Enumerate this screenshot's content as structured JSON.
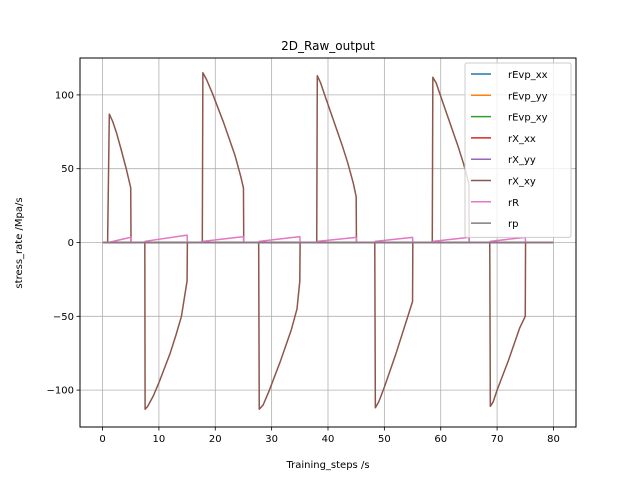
{
  "chart_data": {
    "type": "line",
    "title": "2D_Raw_output",
    "xlabel": "Training_steps /s",
    "ylabel": "stress_rate /Mpa/s",
    "xlim": [
      -4,
      84
    ],
    "ylim": [
      -125,
      125
    ],
    "xticks": [
      0,
      10,
      20,
      30,
      40,
      50,
      60,
      70,
      80
    ],
    "yticks": [
      -100,
      -50,
      0,
      50,
      100
    ],
    "xtick_labels": [
      "0",
      "10",
      "20",
      "30",
      "40",
      "50",
      "60",
      "70",
      "80"
    ],
    "ytick_labels": [
      "−100",
      "−50",
      "0",
      "50",
      "100"
    ],
    "grid": true,
    "legend_position": "top-right",
    "series": [
      {
        "name": "rEvp_xx",
        "color": "#1f77b4",
        "x": [
          0,
          80
        ],
        "y": [
          0,
          0
        ]
      },
      {
        "name": "rEvp_yy",
        "color": "#ff7f0e",
        "x": [
          0,
          80
        ],
        "y": [
          0,
          0
        ]
      },
      {
        "name": "rEvp_xy",
        "color": "#2ca02c",
        "x": [
          0,
          80
        ],
        "y": [
          0,
          0
        ]
      },
      {
        "name": "rX_xx",
        "color": "#d62728",
        "x": [
          0,
          80
        ],
        "y": [
          0,
          0
        ]
      },
      {
        "name": "rX_yy",
        "color": "#9467bd",
        "x": [
          0,
          80
        ],
        "y": [
          0,
          0
        ]
      },
      {
        "name": "rX_xy",
        "color": "#8c564b",
        "x": [
          0,
          0.9,
          1.2,
          1.8,
          2.5,
          3.3,
          4.2,
          5.0,
          5.05,
          7.5,
          7.55,
          8.0,
          9.0,
          10.0,
          11.0,
          12.0,
          13.0,
          14.0,
          15.0,
          15.05,
          17.7,
          17.8,
          18.5,
          19.5,
          20.5,
          21.5,
          22.5,
          23.5,
          24.5,
          25.0,
          25.05,
          27.7,
          27.8,
          28.5,
          29.5,
          30.5,
          31.5,
          32.5,
          33.5,
          34.5,
          35.0,
          35.05,
          38.0,
          38.1,
          38.7,
          39.5,
          40.5,
          41.5,
          42.5,
          43.5,
          44.5,
          45.0,
          45.05,
          48.3,
          48.4,
          49.0,
          50.0,
          51.0,
          52.0,
          53.0,
          54.0,
          55.0,
          55.05,
          58.5,
          58.6,
          59.2,
          60.0,
          61.0,
          62.0,
          63.0,
          64.0,
          65.0,
          65.05,
          68.7,
          68.8,
          69.3,
          70.0,
          71.0,
          72.0,
          73.0,
          74.0,
          75.0,
          75.05,
          80.0
        ],
        "y": [
          0,
          0,
          87,
          82,
          74,
          63,
          50,
          37,
          0,
          0,
          -113,
          -111,
          -104,
          -95,
          -85,
          -75,
          -63,
          -50,
          -26,
          0,
          0,
          115,
          110,
          101,
          91,
          81,
          70,
          59,
          45,
          37,
          0,
          0,
          -113,
          -110,
          -101,
          -91,
          -81,
          -70,
          -59,
          -45,
          -26,
          0,
          0,
          113,
          108,
          99,
          88,
          77,
          66,
          54,
          40,
          31,
          0,
          0,
          -112,
          -108,
          -98,
          -87,
          -76,
          -64,
          -52,
          -40,
          0,
          0,
          112,
          108,
          99,
          88,
          77,
          66,
          54,
          40,
          0,
          0,
          -111,
          -108,
          -100,
          -90,
          -80,
          -69,
          -58,
          -50,
          0,
          0
        ]
      },
      {
        "name": "rR",
        "color": "#e377c2",
        "x": [
          0,
          1.0,
          5.0,
          5.05,
          7.5,
          7.55,
          15.0,
          15.05,
          17.7,
          17.8,
          25.0,
          25.05,
          27.7,
          27.8,
          35.0,
          35.05,
          38.0,
          38.1,
          45.0,
          45.05,
          48.3,
          48.4,
          55.0,
          55.05,
          58.5,
          58.6,
          65.0,
          65.05,
          68.7,
          68.8,
          75.0,
          75.05,
          80.0
        ],
        "y": [
          0,
          0,
          3.5,
          0,
          0,
          0.8,
          5.0,
          0,
          0,
          0.8,
          4.0,
          0,
          0,
          0.8,
          4.0,
          0,
          0,
          0.8,
          3.5,
          0,
          0,
          0.8,
          3.5,
          0,
          0,
          0.8,
          3.5,
          0,
          0,
          0.8,
          3.5,
          0,
          0
        ]
      },
      {
        "name": "rp",
        "color": "#7f7f7f",
        "x": [
          0,
          80
        ],
        "y": [
          0,
          0
        ]
      }
    ]
  }
}
